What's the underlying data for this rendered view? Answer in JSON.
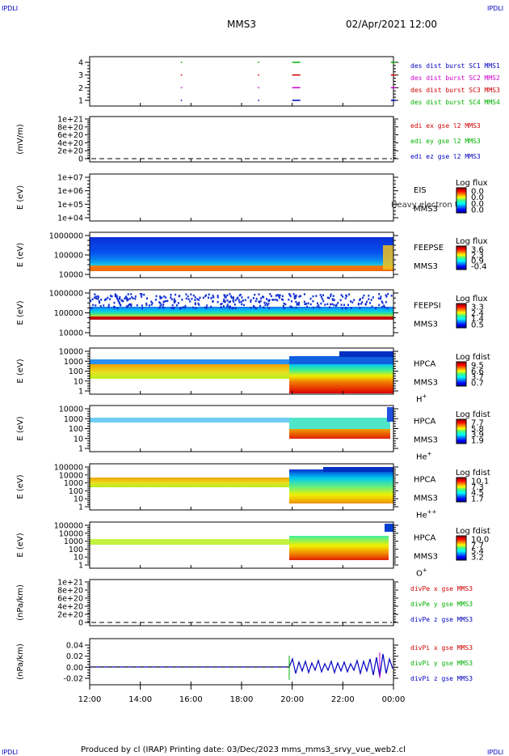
{
  "corner_label": "IPDLI",
  "header": {
    "spacecraft": "MMS3",
    "datetime": "02/Apr/2021 12:00"
  },
  "footer": {
    "text": "Produced by cl (IRAP)   Printing date: 03/Dec/2023   mms_mms3_srvy_vue_web2.cl"
  },
  "colors": {
    "red": "#d00000",
    "green": "#00b000",
    "blue": "#0000c0",
    "magenta": "#d000d0"
  },
  "chart_data": {
    "type": "multi-panel time series",
    "x_tick_labels": [
      "12:00",
      "14:00",
      "16:00",
      "18:00",
      "20:00",
      "22:00",
      "00:00"
    ],
    "panels": [
      {
        "id": "burst",
        "yticks": [
          "4",
          "3",
          "2",
          "1"
        ],
        "legend": [
          {
            "text": "des dist burst SC1 MMS1",
            "color": "#0000c0"
          },
          {
            "text": "des dist burst SC2 MMS2",
            "color": "#d000d0"
          },
          {
            "text": "des dist burst SC3 MMS3",
            "color": "#d00000"
          },
          {
            "text": "des dist burst SC4 MMS4",
            "color": "#00b000"
          }
        ],
        "burst_times_hours": [
          15.6,
          18.65,
          20.0,
          23.9
        ]
      },
      {
        "id": "edi",
        "ylabel": "(mV/m)",
        "yticks": [
          "1e+21",
          "8e+20",
          "6e+20",
          "4e+20",
          "2e+20",
          "0"
        ],
        "legend": [
          {
            "text": "edi ex gse l2 MMS3",
            "color": "#d00000"
          },
          {
            "text": "edi ey gse l2 MMS3",
            "color": "#00b000"
          },
          {
            "text": "edi ez gse l2 MMS3",
            "color": "#0000c0"
          }
        ]
      },
      {
        "id": "eis",
        "ylabel": "E (eV)",
        "yticks": [
          "1e+07",
          "1e+06",
          "1e+05",
          "1e+04"
        ],
        "instrument": [
          "EIS",
          "MMS3"
        ],
        "overlay": "Heavy electron to",
        "cbar_title": "Log flux",
        "cbar_ticks": [
          "0.0",
          "0.0",
          "0.0",
          "0.0"
        ]
      },
      {
        "id": "feepse",
        "ylabel": "E (eV)",
        "yticks": [
          "1000000",
          "100000",
          "10000"
        ],
        "instrument": [
          "FEEPSE",
          "MMS3"
        ],
        "cbar_title": "Log flux",
        "cbar_ticks": [
          "3.6",
          "2.3",
          "0.9",
          "-0.4"
        ]
      },
      {
        "id": "feepsi",
        "ylabel": "E (eV)",
        "yticks": [
          "1000000",
          "100000",
          "10000"
        ],
        "instrument": [
          "FEEPSI",
          "MMS3"
        ],
        "cbar_title": "Log flux",
        "cbar_ticks": [
          "3.3",
          "2.4",
          "1.4",
          "0.5"
        ]
      },
      {
        "id": "hpca_h",
        "ylabel": "E (eV)",
        "yticks": [
          "10000",
          "1000",
          "100",
          "10",
          "1"
        ],
        "instrument": [
          "HPCA",
          "MMS3"
        ],
        "species": "H",
        "charge": "+",
        "cbar_title": "Log fdist",
        "cbar_ticks": [
          "9.5",
          "6.6",
          "3.7",
          "0.7"
        ]
      },
      {
        "id": "hpca_he",
        "ylabel": "E (eV)",
        "yticks": [
          "10000",
          "1000",
          "100",
          "10",
          "1"
        ],
        "instrument": [
          "HPCA",
          "MMS3"
        ],
        "species": "He",
        "charge": "+",
        "cbar_title": "Log fdist",
        "cbar_ticks": [
          "7.7",
          "5.8",
          "3.9",
          "1.9"
        ]
      },
      {
        "id": "hpca_hepp",
        "ylabel": "E (eV)",
        "yticks": [
          "100000",
          "10000",
          "1000",
          "100",
          "10",
          "1"
        ],
        "instrument": [
          "HPCA",
          "MMS3"
        ],
        "species": "He",
        "charge": "++",
        "cbar_title": "Log fdist",
        "cbar_ticks": [
          "10.1",
          "7.3",
          "4.5",
          "1.7"
        ]
      },
      {
        "id": "hpca_o",
        "ylabel": "E (eV)",
        "yticks": [
          "100000",
          "10000",
          "1000",
          "100",
          "10",
          "1"
        ],
        "instrument": [
          "HPCA",
          "MMS3"
        ],
        "species": "O",
        "charge": "+",
        "cbar_title": "Log fdist",
        "cbar_ticks": [
          "10.0",
          "7.7",
          "5.4",
          "3.2"
        ]
      },
      {
        "id": "divpe",
        "ylabel": "(nPa/km)",
        "yticks": [
          "1e+21",
          "8e+20",
          "6e+20",
          "4e+20",
          "2e+20",
          "0"
        ],
        "legend": [
          {
            "text": "divPe x gse MMS3",
            "color": "#d00000"
          },
          {
            "text": "divPe y gse MMS3",
            "color": "#00b000"
          },
          {
            "text": "divPe z gse MMS3",
            "color": "#0000c0"
          }
        ]
      },
      {
        "id": "divpi",
        "ylabel": "(nPa/km)",
        "yticks": [
          "0.04",
          "0.02",
          "0.00",
          "-0.02"
        ],
        "legend": [
          {
            "text": "divPi x gse MMS3",
            "color": "#d00000"
          },
          {
            "text": "divPi y gse MMS3",
            "color": "#00b000"
          },
          {
            "text": "divPi z gse MMS3",
            "color": "#0000c0"
          }
        ]
      }
    ]
  }
}
